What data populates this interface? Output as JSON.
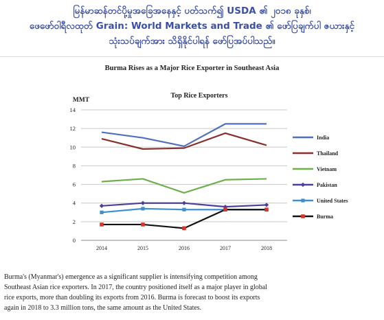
{
  "header": {
    "line1": "မြန်မာဆန်တင်ပို့မှုအခြေအနေနှင့် ပတ်သက်၍ USDA ၏ ၂၀၁၈ ခုနှစ်၊",
    "line2": "ဖေဖော်ဝါရီလထုတ် Grain: World Markets and Trade ၏ ဖော်ပြချက်ပါ ဇယားနှင့်",
    "line3": "သုံးသပ်ချက်အား သိရှိနိုင်ပါရန် ဖော်ပြအပ်ပါသည်။"
  },
  "document_title": "Burma Rises as a Major Rice Exporter in Southeast Asia",
  "body_text": [
    "Burma's (Myanmar's) emergence as a significant supplier is intensifying competition among",
    "Southeast Asian rice exporters.  In 2017, the country positioned itself as a major player in global",
    "rice exports, more than doubling its exports from 2016.  Burma is forecast to boost its exports",
    "again in 2018 to 3.3 million tons, the same amount as the United States."
  ],
  "chart_data": {
    "type": "line",
    "title": "Top Rice Exporters",
    "ylabel": "MMT",
    "xlabel": "",
    "x": [
      "2014",
      "2015",
      "2016",
      "2017",
      "2018"
    ],
    "ylim": [
      0,
      14
    ],
    "yticks": [
      0,
      2,
      4,
      6,
      8,
      10,
      12,
      14
    ],
    "grid": true,
    "legend_position": "right",
    "series": [
      {
        "name": "India",
        "color": "#4f6fc0",
        "marker": "none",
        "values": [
          11.6,
          11.0,
          10.1,
          12.5,
          12.5
        ]
      },
      {
        "name": "Thailand",
        "color": "#8b2e2e",
        "marker": "none",
        "values": [
          10.9,
          9.8,
          9.9,
          11.5,
          10.2
        ]
      },
      {
        "name": "Vietnam",
        "color": "#6cb04a",
        "marker": "none",
        "values": [
          6.3,
          6.6,
          5.1,
          6.5,
          6.6
        ]
      },
      {
        "name": "Pakistan",
        "color": "#4a3f9a",
        "marker": "diamond",
        "values": [
          3.7,
          4.0,
          4.0,
          3.6,
          3.8
        ]
      },
      {
        "name": "United States",
        "color": "#3f8fcf",
        "marker": "square",
        "values": [
          3.0,
          3.4,
          3.3,
          3.3,
          3.3
        ]
      },
      {
        "name": "Burma",
        "color": "#111111",
        "marker": "square-red",
        "values": [
          1.7,
          1.7,
          1.3,
          3.3,
          3.3
        ]
      }
    ]
  }
}
